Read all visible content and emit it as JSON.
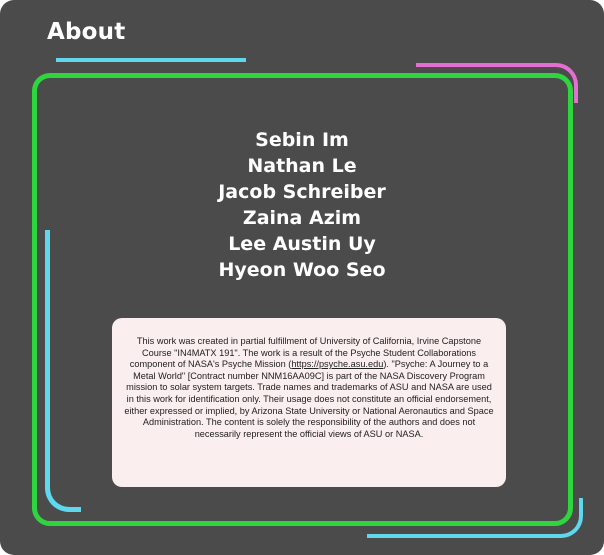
{
  "header": {
    "title": "About"
  },
  "team": {
    "members": [
      "Sebin Im",
      "Nathan Le",
      "Jacob Schreiber",
      "Zaina Azim",
      "Lee Austin Uy",
      "Hyeon Woo Seo"
    ]
  },
  "disclaimer": {
    "part1": "This work was created in partial fulfillment of University of California, Irvine Capstone Course \"IN4MATX 191\". The work is a result of the Psyche Student Collaborations component of NASA's Psyche Mission (",
    "link": "https://psyche.asu.edu",
    "part2": "). \"Psyche: A Journey to a Metal World\" [Contract number NNM16AA09C] is part of the NASA Discovery Program mission to solar system targets. Trade names and trademarks of ASU and NASA are used in this work for identification only. Their usage does not constitute an official endorsement, either expressed or implied, by Arizona State University or National Aeronautics and Space Administration. The content is solely the responsibility of the authors and does not necessarily represent the official views of ASU or NASA."
  },
  "colors": {
    "background": "#4b4b4b",
    "frame": "#2fd53f",
    "accent_cyan": "#5fd8ee",
    "accent_pink": "#e46fd2",
    "disclaimer_bg": "#fbeeee"
  }
}
